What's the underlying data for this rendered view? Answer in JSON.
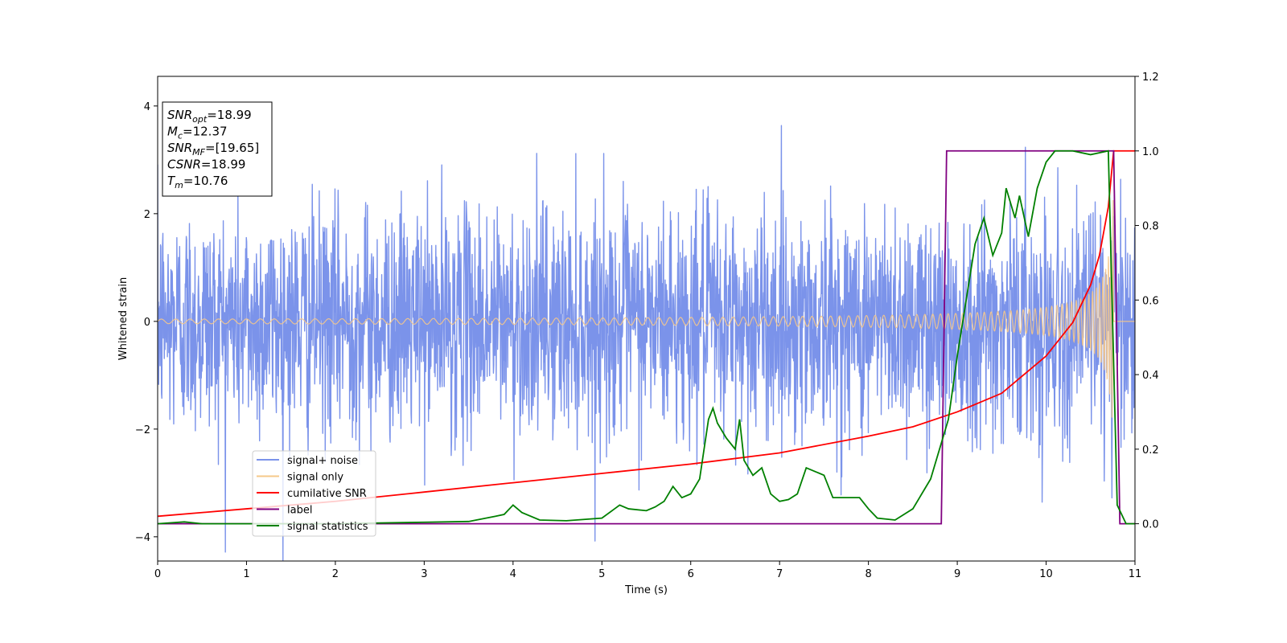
{
  "chart_data": {
    "type": "line",
    "title": "",
    "xlabel": "Time (s)",
    "ylabel": "Whitened strain",
    "y2label": "",
    "xlim": [
      0,
      11
    ],
    "ylim": [
      -4.45,
      4.55
    ],
    "y2lim": [
      -0.1,
      1.2
    ],
    "x_ticks": [
      0,
      1,
      2,
      3,
      4,
      5,
      6,
      7,
      8,
      9,
      10,
      11
    ],
    "y_ticks": [
      -4,
      -2,
      0,
      2,
      4
    ],
    "y2_ticks": [
      0.0,
      0.2,
      0.4,
      0.6,
      0.8,
      1.0,
      1.2
    ],
    "grid": false,
    "legend_position": "lower-left",
    "info_box": {
      "position": "upper-left",
      "lines": [
        {
          "label": "SNR",
          "sub": "opt",
          "value": "=18.99"
        },
        {
          "label": "M",
          "sub": "c",
          "value": "=12.37"
        },
        {
          "label": "SNR",
          "sub": "MF",
          "value": "=[19.65]"
        },
        {
          "label": "CSNR",
          "sub": "",
          "value": "=18.99"
        },
        {
          "label": "T",
          "sub": "m",
          "value": "=10.76"
        }
      ]
    },
    "series": [
      {
        "name": "signal+ noise",
        "color": "#7b93ea",
        "axis": "left",
        "style": "noisy-strain",
        "noise_sigma": 1.0,
        "x_range": [
          0,
          11
        ]
      },
      {
        "name": "signal only",
        "color": "#f6c88a",
        "axis": "left",
        "style": "chirp",
        "merger_time": 10.76,
        "peak_amplitude": 2.6,
        "x_range": [
          0,
          11
        ]
      },
      {
        "name": "cumilative SNR",
        "color": "#ff0000",
        "axis": "right",
        "x": [
          0,
          1,
          2,
          3,
          4,
          5,
          6,
          7,
          8,
          8.5,
          9,
          9.5,
          10,
          10.3,
          10.5,
          10.6,
          10.7,
          10.76,
          11
        ],
        "y": [
          0.02,
          0.04,
          0.06,
          0.085,
          0.11,
          0.135,
          0.16,
          0.19,
          0.235,
          0.26,
          0.3,
          0.35,
          0.45,
          0.54,
          0.64,
          0.72,
          0.85,
          1.0,
          1.0
        ]
      },
      {
        "name": "label",
        "color": "#800080",
        "axis": "right",
        "x": [
          0,
          8.82,
          8.88,
          10.76,
          10.83,
          11
        ],
        "y": [
          0.0,
          0.0,
          1.0,
          1.0,
          0.0,
          0.0
        ]
      },
      {
        "name": "signal statistics",
        "color": "#008000",
        "axis": "right",
        "x": [
          0,
          0.3,
          0.5,
          1,
          1.5,
          2,
          2.5,
          3,
          3.5,
          3.8,
          3.9,
          4.0,
          4.1,
          4.3,
          4.6,
          5.0,
          5.2,
          5.3,
          5.5,
          5.6,
          5.7,
          5.8,
          5.9,
          6.0,
          6.1,
          6.2,
          6.25,
          6.3,
          6.4,
          6.5,
          6.55,
          6.6,
          6.7,
          6.8,
          6.9,
          7.0,
          7.1,
          7.2,
          7.3,
          7.4,
          7.5,
          7.6,
          7.8,
          7.9,
          8.0,
          8.1,
          8.3,
          8.5,
          8.6,
          8.7,
          8.8,
          8.9,
          9.0,
          9.1,
          9.2,
          9.3,
          9.4,
          9.5,
          9.55,
          9.65,
          9.7,
          9.8,
          9.9,
          10.0,
          10.1,
          10.3,
          10.5,
          10.7,
          10.8,
          10.9,
          11
        ],
        "y": [
          0.0,
          0.005,
          0.0,
          0.0,
          0.0,
          0.0,
          0.002,
          0.004,
          0.006,
          0.02,
          0.025,
          0.05,
          0.03,
          0.01,
          0.008,
          0.015,
          0.05,
          0.04,
          0.035,
          0.045,
          0.06,
          0.1,
          0.07,
          0.08,
          0.12,
          0.28,
          0.31,
          0.27,
          0.23,
          0.2,
          0.28,
          0.17,
          0.13,
          0.15,
          0.08,
          0.06,
          0.065,
          0.08,
          0.15,
          0.14,
          0.13,
          0.07,
          0.07,
          0.07,
          0.04,
          0.015,
          0.01,
          0.04,
          0.08,
          0.12,
          0.2,
          0.28,
          0.45,
          0.6,
          0.75,
          0.82,
          0.72,
          0.78,
          0.9,
          0.82,
          0.88,
          0.77,
          0.9,
          0.97,
          1.0,
          1.0,
          0.99,
          1.0,
          0.05,
          0.0,
          0.0
        ]
      }
    ]
  }
}
